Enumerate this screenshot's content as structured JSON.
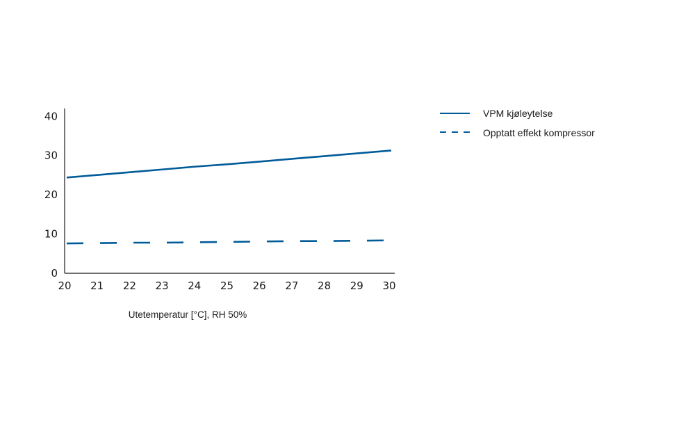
{
  "chart_data": {
    "type": "line",
    "title": "",
    "xlabel": "Utetemperatur [°C], RH 50%",
    "ylabel": "",
    "x": [
      20,
      21,
      22,
      23,
      24,
      25,
      26,
      27,
      28,
      29,
      30
    ],
    "xticks": [
      "20",
      "21",
      "22",
      "23",
      "24",
      "25",
      "26",
      "27",
      "28",
      "29",
      "30"
    ],
    "yticks": [
      "0",
      "10",
      "20",
      "30",
      "40"
    ],
    "xlim": [
      20,
      30
    ],
    "ylim": [
      0,
      42
    ],
    "grid": false,
    "legend_position": "right",
    "series": [
      {
        "name": "VPM kjøleytelse",
        "style": "solid",
        "color": "#005b99",
        "values": [
          24.4,
          25.1,
          25.8,
          26.5,
          27.2,
          27.8,
          28.5,
          29.2,
          29.9,
          30.6,
          31.3
        ]
      },
      {
        "name": "Opptatt effekt kompressor",
        "style": "dashed",
        "color": "#005b99",
        "values": [
          7.6,
          7.7,
          7.8,
          7.8,
          7.9,
          8.0,
          8.1,
          8.2,
          8.2,
          8.3,
          8.4
        ]
      }
    ]
  }
}
